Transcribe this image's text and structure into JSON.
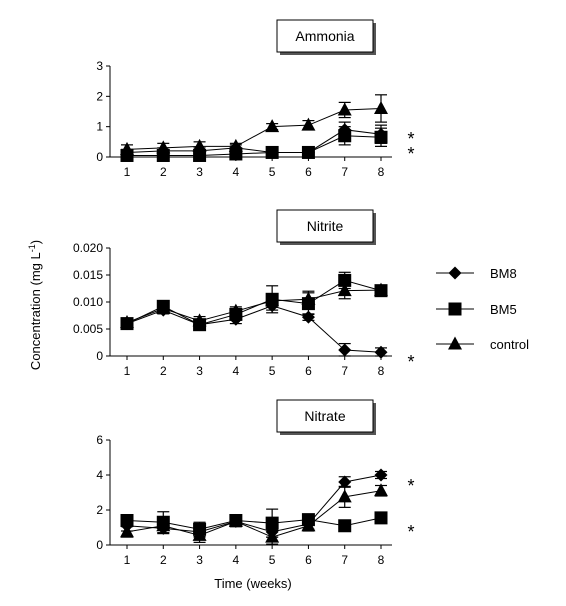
{
  "figure": {
    "ylabel": "Concentration (mg L",
    "ylabel_exponent": "-1",
    "ylabel_close": ")",
    "xlabel": "Time (weeks)"
  },
  "legend": {
    "position": "right",
    "entries": [
      {
        "name": "BM8",
        "marker": "diamond"
      },
      {
        "name": "BM5",
        "marker": "square"
      },
      {
        "name": "control",
        "marker": "triangle"
      }
    ]
  },
  "chart_data": [
    {
      "type": "line",
      "title": "Ammonia",
      "x": [
        1,
        2,
        3,
        4,
        5,
        6,
        7,
        8
      ],
      "ylim": [
        0,
        3
      ],
      "yticks": [
        "0",
        "1",
        "2",
        "3"
      ],
      "series": [
        {
          "name": "BM8",
          "marker": "diamond",
          "values": [
            0.15,
            0.2,
            0.2,
            0.3,
            0.15,
            0.15,
            0.9,
            0.75
          ],
          "errors": [
            0.1,
            0.1,
            0.1,
            0.1,
            0.05,
            0.05,
            0.25,
            0.3
          ]
        },
        {
          "name": "BM5",
          "marker": "square",
          "values": [
            0.05,
            0.05,
            0.05,
            0.1,
            0.15,
            0.15,
            0.7,
            0.65
          ],
          "errors": [
            0.1,
            0.1,
            0.1,
            0.1,
            0.05,
            0.05,
            0.3,
            0.3
          ]
        },
        {
          "name": "control",
          "marker": "triangle",
          "values": [
            0.25,
            0.3,
            0.35,
            0.35,
            1.0,
            1.05,
            1.55,
            1.6
          ],
          "errors": [
            0.15,
            0.15,
            0.15,
            0.1,
            0.1,
            0.15,
            0.25,
            0.45
          ]
        }
      ],
      "annotations": [
        "*",
        "*"
      ]
    },
    {
      "type": "line",
      "title": "Nitrite",
      "x": [
        1,
        2,
        3,
        4,
        5,
        6,
        7,
        8
      ],
      "ylim": [
        0,
        0.02
      ],
      "yticks": [
        "0",
        "0.005",
        "0.010",
        "0.015",
        "0.020"
      ],
      "series": [
        {
          "name": "BM8",
          "marker": "diamond",
          "values": [
            0.006,
            0.0085,
            0.0058,
            0.0068,
            0.0093,
            0.0072,
            0.0011,
            0.0007
          ],
          "errors": [
            0.0007,
            0.0007,
            0.0008,
            0.0008,
            0.0008,
            0.0006,
            0.0012,
            0.0008
          ]
        },
        {
          "name": "BM5",
          "marker": "square",
          "values": [
            0.006,
            0.0092,
            0.0058,
            0.0077,
            0.0105,
            0.0097,
            0.014,
            0.0121
          ],
          "errors": [
            0.0007,
            0.0007,
            0.0008,
            0.0008,
            0.0025,
            0.002,
            0.0015,
            0.0008
          ]
        },
        {
          "name": "control",
          "marker": "triangle",
          "values": [
            0.0062,
            0.0088,
            0.0065,
            0.0083,
            0.0102,
            0.0105,
            0.0121,
            0.0122
          ],
          "errors": [
            0.0007,
            0.0007,
            0.0008,
            0.0008,
            0.0012,
            0.0015,
            0.0015,
            0.0008
          ]
        }
      ],
      "annotations": [
        "*"
      ]
    },
    {
      "type": "line",
      "title": "Nitrate",
      "x": [
        1,
        2,
        3,
        4,
        5,
        6,
        7,
        8
      ],
      "ylim": [
        0,
        6
      ],
      "yticks": [
        "0",
        "2",
        "4",
        "6"
      ],
      "series": [
        {
          "name": "BM8",
          "marker": "diamond",
          "values": [
            1.1,
            0.95,
            0.75,
            1.35,
            0.75,
            1.2,
            3.6,
            4.0
          ],
          "errors": [
            0.3,
            0.3,
            0.3,
            0.3,
            0.3,
            0.3,
            0.3,
            0.2
          ]
        },
        {
          "name": "BM5",
          "marker": "square",
          "values": [
            1.4,
            1.3,
            0.9,
            1.4,
            1.25,
            1.45,
            1.1,
            1.55
          ],
          "errors": [
            0.3,
            0.6,
            0.4,
            0.3,
            0.8,
            0.3,
            0.2,
            0.2
          ]
        },
        {
          "name": "control",
          "marker": "triangle",
          "values": [
            0.75,
            1.1,
            0.55,
            1.35,
            0.45,
            1.1,
            2.75,
            3.1
          ],
          "errors": [
            0.3,
            0.4,
            0.4,
            0.3,
            0.4,
            0.3,
            0.6,
            0.3
          ]
        }
      ],
      "annotations": [
        "*",
        "*"
      ]
    }
  ]
}
